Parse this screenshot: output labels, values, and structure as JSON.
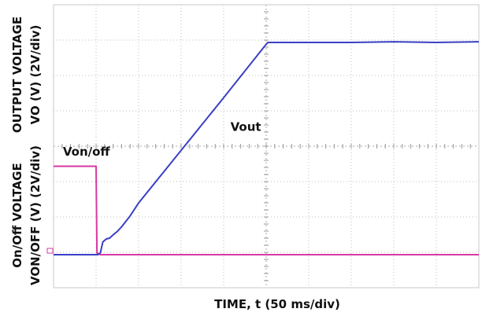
{
  "chart_data": {
    "type": "line",
    "xlabel": "TIME, t (50 ms/div)",
    "ylabel_top": [
      "OUTPUT VOLTAGE",
      "VO (V) (2V/div)"
    ],
    "ylabel_bottom": [
      "On/Off VOLTAGE",
      "VON/OFF (V) (2V/div)"
    ],
    "x_divisions": 10,
    "y_divisions": 8,
    "xlim": [
      0,
      500
    ],
    "ylim_div": [
      0,
      8
    ],
    "grid": true,
    "series": [
      {
        "name": "Vout",
        "color": "#3a3fc4",
        "x": [
          0,
          52,
          55,
          58,
          62,
          66,
          70,
          75,
          80,
          90,
          100,
          150,
          200,
          250,
          252,
          300,
          350,
          400,
          450,
          500
        ],
        "y_div": [
          0,
          0,
          0.05,
          0.35,
          0.45,
          0.48,
          0.55,
          0.65,
          0.8,
          1.1,
          1.45,
          2.95,
          4.45,
          5.95,
          6.0,
          6.0,
          6.0,
          6.02,
          6.0,
          6.02
        ]
      },
      {
        "name": "Von/off",
        "color": "#d63aa3",
        "x": [
          0,
          50,
          51,
          55,
          500
        ],
        "y_div": [
          2.5,
          2.5,
          0.05,
          0,
          0
        ]
      }
    ],
    "annotations": [
      {
        "text": "Vout",
        "series": "Vout",
        "x": 208,
        "y_div": 3.5
      },
      {
        "text": "Von/off",
        "series": "Von/off",
        "x": 11,
        "y_div": 2.8
      }
    ]
  }
}
